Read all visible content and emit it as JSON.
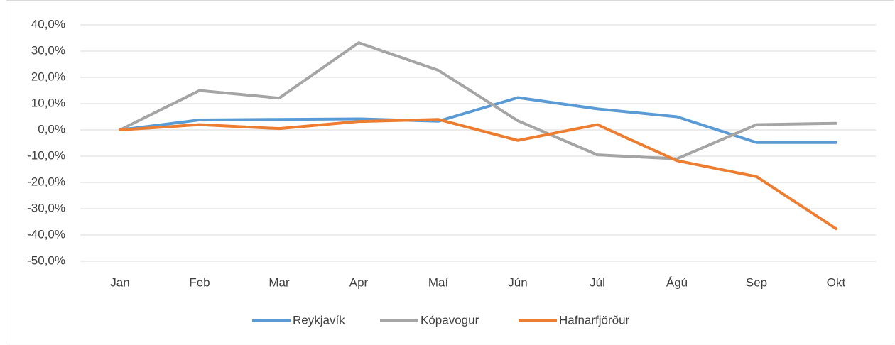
{
  "chart_data": {
    "type": "line",
    "categories": [
      "Jan",
      "Feb",
      "Mar",
      "Apr",
      "Maí",
      "Jún",
      "Júl",
      "Ágú",
      "Sep",
      "Okt"
    ],
    "series": [
      {
        "name": "Reykjavík",
        "color": "#5b9bd5",
        "values": [
          0,
          3.8,
          4.0,
          4.2,
          3.3,
          12.3,
          8.0,
          5.0,
          -4.8,
          -4.8
        ]
      },
      {
        "name": "Kópavogur",
        "color": "#a5a5a5",
        "values": [
          0,
          15.0,
          12.1,
          33.2,
          22.7,
          3.5,
          -9.5,
          -11.0,
          2.0,
          2.5
        ]
      },
      {
        "name": "Hafnarfjörður",
        "color": "#ed7d31",
        "values": [
          0,
          2.0,
          0.5,
          3.2,
          4.0,
          -4.0,
          2.0,
          -11.7,
          -17.8,
          -37.6
        ]
      }
    ],
    "ylim": [
      -50,
      40
    ],
    "yticks": [
      {
        "value": 40,
        "label": "40,0%"
      },
      {
        "value": 30,
        "label": "30,0%"
      },
      {
        "value": 20,
        "label": "20,0%"
      },
      {
        "value": 10,
        "label": "10,0%"
      },
      {
        "value": 0,
        "label": "0,0%"
      },
      {
        "value": -10,
        "label": "-10,0%"
      },
      {
        "value": -20,
        "label": "-20,0%"
      },
      {
        "value": -30,
        "label": "-30,0%"
      },
      {
        "value": -40,
        "label": "-40,0%"
      },
      {
        "value": -50,
        "label": "-50,0%"
      }
    ],
    "grid": true,
    "legend": "bottom"
  }
}
